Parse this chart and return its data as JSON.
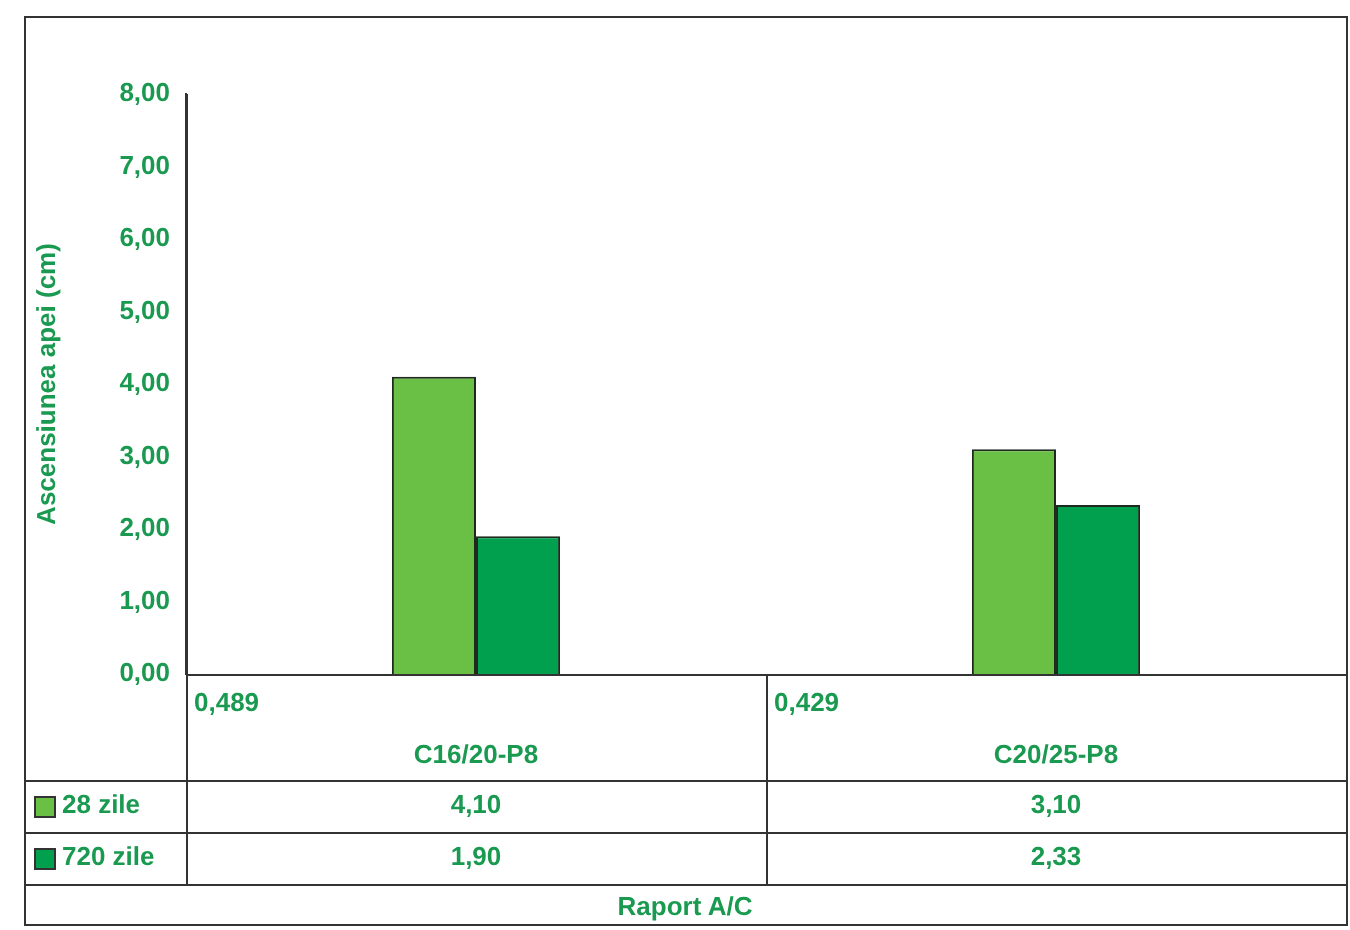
{
  "chart_data": {
    "type": "bar",
    "ylabel": "Ascensiunea apei (cm)",
    "xlabel": "Raport A/C",
    "categories": [
      "C16/20-P8",
      "C20/25-P8"
    ],
    "series": [
      {
        "name": "28 zile",
        "color": "#6abf45",
        "values": [
          4.1,
          3.1
        ],
        "value_labels": [
          "4,10",
          "3,10"
        ]
      },
      {
        "name": "720 zile",
        "color": "#00a04f",
        "values": [
          1.9,
          2.33
        ],
        "value_labels": [
          "1,90",
          "2,33"
        ]
      }
    ],
    "annotations": [
      "0,489",
      "0,429"
    ],
    "ylim": [
      0,
      8
    ],
    "yticks": [
      {
        "value": 0,
        "label": "0,00"
      },
      {
        "value": 1,
        "label": "1,00"
      },
      {
        "value": 2,
        "label": "2,00"
      },
      {
        "value": 3,
        "label": "3,00"
      },
      {
        "value": 4,
        "label": "4,00"
      },
      {
        "value": 5,
        "label": "5,00"
      },
      {
        "value": 6,
        "label": "6,00"
      },
      {
        "value": 7,
        "label": "7,00"
      },
      {
        "value": 8,
        "label": "8,00"
      }
    ],
    "grid": false,
    "legend": "bottom"
  }
}
